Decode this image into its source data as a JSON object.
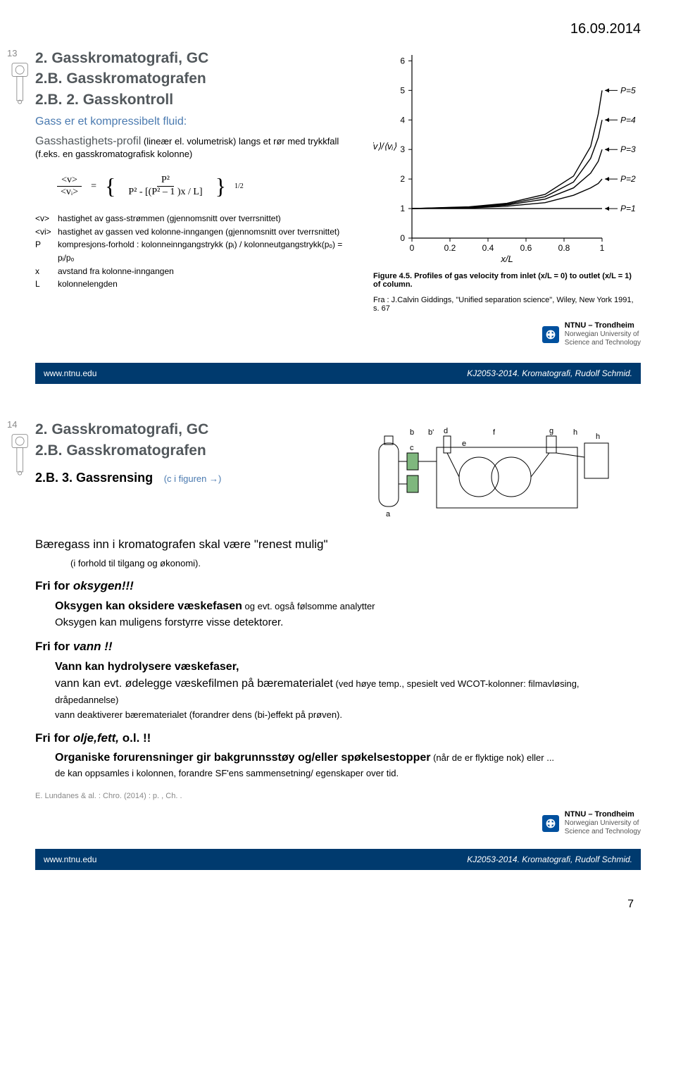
{
  "date": "16.09.2014",
  "page_number": "7",
  "slide1": {
    "number": "13",
    "title_lines": [
      "2.   Gasskromatografi, GC",
      "2.B. Gasskromatografen",
      "2.B. 2.  Gasskontroll"
    ],
    "subtitle": "Gass er et kompressibelt fluid:",
    "profil_label": "Gasshastighets-profil",
    "profil_rest": " (lineær el. volumetrisk) langs et rør med trykkfall (f.eks. en gasskromatografisk kolonne)",
    "formula": {
      "top_left": "<v>",
      "bot_left": "<vᵢ>",
      "eq": "=",
      "top_right": "P²",
      "bot_right": "P² - [(P² – 1 )x / L]",
      "exponent": "1/2"
    },
    "defs": [
      {
        "sym": "<v>",
        "txt": "hastighet av gass-strømmen (gjennomsnitt over tverrsnittet)"
      },
      {
        "sym": "<vi>",
        "txt": "hastighet av gassen ved kolonne-inngangen (gjennomsnitt over tverrsnittet)"
      },
      {
        "sym": "P",
        "txt": "kompresjons-forhold : kolonneinngangstrykk (pᵢ) / kolonneutgangstrykk(pₒ) = pᵢ/pₒ"
      },
      {
        "sym": "x",
        "txt": "avstand fra kolonne-inngangen"
      },
      {
        "sym": "L",
        "txt": "kolonnelengden"
      }
    ],
    "chart": {
      "xlim": [
        0,
        1
      ],
      "ylim": [
        0,
        6.2
      ],
      "xticks": [
        0,
        0.2,
        0.4,
        0.6,
        0.8,
        1.0
      ],
      "yticks": [
        0,
        1,
        2,
        3,
        4,
        5,
        6
      ],
      "xlabel": "x/L",
      "ylabel_ratio": "⟨v⟩/⟨vᵢ⟩",
      "curves": [
        {
          "label": "P=5",
          "end_y": 5,
          "color": "#000",
          "pts": [
            [
              0,
              1
            ],
            [
              0.3,
              1.06
            ],
            [
              0.5,
              1.18
            ],
            [
              0.7,
              1.48
            ],
            [
              0.85,
              2.1
            ],
            [
              0.94,
              3.1
            ],
            [
              0.98,
              4.2
            ],
            [
              1,
              5
            ]
          ]
        },
        {
          "label": "P=4",
          "end_y": 4,
          "color": "#000",
          "pts": [
            [
              0,
              1
            ],
            [
              0.3,
              1.05
            ],
            [
              0.5,
              1.15
            ],
            [
              0.7,
              1.4
            ],
            [
              0.85,
              1.9
            ],
            [
              0.94,
              2.7
            ],
            [
              0.98,
              3.4
            ],
            [
              1,
              4
            ]
          ]
        },
        {
          "label": "P=3",
          "end_y": 3,
          "color": "#000",
          "pts": [
            [
              0,
              1
            ],
            [
              0.3,
              1.04
            ],
            [
              0.5,
              1.12
            ],
            [
              0.7,
              1.32
            ],
            [
              0.85,
              1.7
            ],
            [
              0.94,
              2.2
            ],
            [
              0.98,
              2.6
            ],
            [
              1,
              3
            ]
          ]
        },
        {
          "label": "P=2",
          "end_y": 2,
          "color": "#000",
          "pts": [
            [
              0,
              1
            ],
            [
              0.3,
              1.02
            ],
            [
              0.5,
              1.08
            ],
            [
              0.7,
              1.2
            ],
            [
              0.85,
              1.45
            ],
            [
              0.94,
              1.7
            ],
            [
              0.98,
              1.85
            ],
            [
              1,
              2
            ]
          ]
        },
        {
          "label": "P=1",
          "end_y": 1,
          "color": "#000",
          "pts": [
            [
              0,
              1
            ],
            [
              1,
              1
            ]
          ]
        }
      ],
      "caption": "Figure 4.5. Profiles of gas velocity from inlet (x/L = 0) to outlet (x/L = 1) of column."
    },
    "citation": "Fra : J.Calvin Giddings, \"Unified separation science\", Wiley, New York 1991, s. 67"
  },
  "slide2": {
    "number": "14",
    "title_lines": [
      "2.   Gasskromatografi, GC",
      "2.B. Gasskromatografen"
    ],
    "sub_heading": "2.B. 3. Gassrensing",
    "sub_note": "(c  i figuren →)",
    "intro": "Bæregass inn i kromatografen skal være \"renest mulig\"",
    "intro_note": "(i forhold til tilgang og økonomi).",
    "fri1": "Fri for ",
    "fri1_it": "oksygen!!!",
    "fri1_l1": "Oksygen kan oksidere væskefasen",
    "fri1_l1b": " og evt. også følsomme analytter",
    "fri1_l2": "Oksygen kan muligens forstyrre visse detektorer.",
    "fri2": "Fri for ",
    "fri2_it": "vann !!",
    "fri2_l1": "Vann kan hydrolysere væskefaser,",
    "fri2_l2": "vann kan evt. ødelegge væskefilmen på bærematerialet",
    "fri2_l2b": " (ved høye temp., spesielt ved WCOT-kolonner: filmavløsing, dråpedannelse)",
    "fri2_l3": "vann deaktiverer bærematerialet (forandrer dens (bi-)effekt på prøven).",
    "fri3": "Fri for ",
    "fri3_it": "olje,fett,",
    "fri3_rest": " o.l.  !!",
    "fri3_l1": "Organiske forurensninger gir bakgrunnsstøy og/eller spøkelsestopper",
    "fri3_l1b": " (når de er flyktige nok)  eller ...",
    "fri3_l2": "de kan oppsamles i kolonnen, forandre SF'ens sammensetning/ egenskaper over tid.",
    "ref": "E. Lundanes & al. : Chro. (2014) : p. , Ch. .",
    "diagram_labels": [
      "a",
      "b",
      "b'",
      "c",
      "d",
      "e",
      "f",
      "g",
      "h",
      "h"
    ]
  },
  "footer": {
    "left": "www.ntnu.edu",
    "right": "KJ2053-2014. Kromatografi, Rudolf Schmid."
  },
  "ntnu": {
    "name": "NTNU – Trondheim",
    "line1": "Norwegian University of",
    "line2": "Science and Technology"
  },
  "colors": {
    "heading": "#52585c",
    "blue": "#4a7ab0",
    "footer_bg": "#003a6e",
    "ntnu_blue": "#00509e",
    "black": "#000000",
    "axis": "#000000"
  }
}
